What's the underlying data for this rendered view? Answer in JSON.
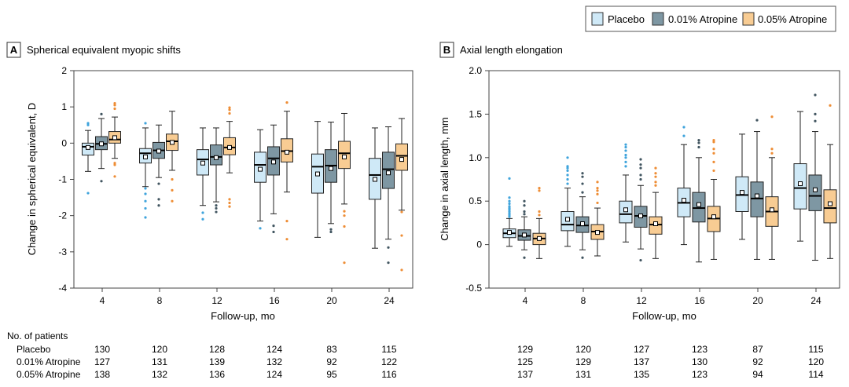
{
  "colors": {
    "placebo": "#cfe9f7",
    "atr001": "#7e97a3",
    "atr005": "#f8cc93",
    "placebo_out": "#3fa4dc",
    "atr001_out": "#415560",
    "atr005_out": "#ee8d35"
  },
  "legend": {
    "items": [
      "Placebo",
      "0.01% Atropine",
      "0.05% Atropine"
    ]
  },
  "table": {
    "header": "No. of patients",
    "rows": [
      {
        "label": "Placebo",
        "a": [
          "130",
          "120",
          "128",
          "124",
          "83",
          "115"
        ],
        "b": [
          "129",
          "120",
          "127",
          "123",
          "87",
          "115"
        ]
      },
      {
        "label": "0.01% Atropine",
        "a": [
          "127",
          "131",
          "139",
          "132",
          "92",
          "122"
        ],
        "b": [
          "125",
          "129",
          "137",
          "130",
          "92",
          "120"
        ]
      },
      {
        "label": "0.05% Atropine",
        "a": [
          "138",
          "132",
          "136",
          "124",
          "95",
          "116"
        ],
        "b": [
          "137",
          "131",
          "135",
          "123",
          "94",
          "114"
        ]
      }
    ]
  },
  "chart_data": [
    {
      "panel_letter": "A",
      "type": "box",
      "title": "Spherical equivalent myopic shifts",
      "xlabel": "Follow-up, mo",
      "ylabel": "Change in spherical equivalent, D",
      "ylim": [
        -4,
        2
      ],
      "yticks": [
        "2",
        "1",
        "0",
        "-1",
        "-2",
        "-3",
        "-4"
      ],
      "categories": [
        "4",
        "8",
        "12",
        "16",
        "20",
        "24"
      ],
      "series": [
        {
          "name": "Placebo",
          "boxes": [
            {
              "wl": -0.78,
              "q1": -0.33,
              "med": -0.1,
              "q3": 0.0,
              "wh": 0.35,
              "mean": -0.12,
              "out": [
                0.5,
                0.55,
                -1.38
              ]
            },
            {
              "wl": -1.2,
              "q1": -0.55,
              "med": -0.28,
              "q3": -0.15,
              "wh": 0.42,
              "mean": -0.38,
              "out": [
                0.55,
                -1.25,
                -1.4,
                -1.6,
                -1.8,
                -2.05
              ]
            },
            {
              "wl": -1.72,
              "q1": -0.88,
              "med": -0.45,
              "q3": -0.18,
              "wh": 0.42,
              "mean": -0.55,
              "out": [
                -1.92,
                -2.1
              ]
            },
            {
              "wl": -2.15,
              "q1": -1.08,
              "med": -0.6,
              "q3": -0.25,
              "wh": 0.37,
              "mean": -0.72,
              "out": [
                -2.35
              ]
            },
            {
              "wl": -2.6,
              "q1": -1.38,
              "med": -0.65,
              "q3": -0.3,
              "wh": 0.6,
              "mean": -0.85,
              "out": []
            },
            {
              "wl": -2.9,
              "q1": -1.55,
              "med": -0.88,
              "q3": -0.42,
              "wh": 0.42,
              "mean": -1.0,
              "out": []
            }
          ]
        },
        {
          "name": "0.01% Atropine",
          "boxes": [
            {
              "wl": -0.7,
              "q1": -0.18,
              "med": -0.02,
              "q3": 0.18,
              "wh": 0.68,
              "mean": -0.02,
              "out": [
                0.8,
                -1.05
              ]
            },
            {
              "wl": -0.95,
              "q1": -0.42,
              "med": -0.2,
              "q3": 0.02,
              "wh": 0.5,
              "mean": -0.22,
              "out": [
                -1.12,
                -1.55,
                -1.72
              ]
            },
            {
              "wl": -1.62,
              "q1": -0.6,
              "med": -0.38,
              "q3": -0.05,
              "wh": 0.42,
              "mean": -0.4,
              "out": [
                -1.72,
                -1.8,
                -1.9
              ]
            },
            {
              "wl": -1.95,
              "q1": -0.88,
              "med": -0.42,
              "q3": -0.1,
              "wh": 0.5,
              "mean": -0.52,
              "out": [
                -2.28,
                -2.45
              ]
            },
            {
              "wl": -2.22,
              "q1": -1.08,
              "med": -0.62,
              "q3": -0.18,
              "wh": 0.58,
              "mean": -0.7,
              "out": [
                -2.38,
                -2.45
              ]
            },
            {
              "wl": -2.65,
              "q1": -1.25,
              "med": -0.72,
              "q3": -0.25,
              "wh": 0.45,
              "mean": -0.82,
              "out": [
                -2.88,
                -3.3
              ]
            }
          ]
        },
        {
          "name": "0.05% Atropine",
          "boxes": [
            {
              "wl": -0.42,
              "q1": 0.0,
              "med": 0.1,
              "q3": 0.32,
              "wh": 0.72,
              "mean": 0.15,
              "out": [
                1.1,
                1.05,
                0.95,
                -0.55,
                -0.6,
                -0.92
              ]
            },
            {
              "wl": -0.75,
              "q1": -0.2,
              "med": 0.05,
              "q3": 0.25,
              "wh": 0.88,
              "mean": 0.02,
              "out": [
                -1.0,
                -1.3,
                -1.6
              ]
            },
            {
              "wl": -0.82,
              "q1": -0.32,
              "med": -0.12,
              "q3": 0.15,
              "wh": 0.6,
              "mean": -0.12,
              "out": [
                0.98,
                0.92,
                0.82,
                -1.55,
                -1.65,
                -1.75
              ]
            },
            {
              "wl": -1.35,
              "q1": -0.52,
              "med": -0.22,
              "q3": 0.12,
              "wh": 0.88,
              "mean": -0.25,
              "out": [
                1.12,
                -2.15,
                -2.65
              ]
            },
            {
              "wl": -1.68,
              "q1": -0.7,
              "med": -0.28,
              "q3": 0.05,
              "wh": 0.82,
              "mean": -0.38,
              "out": [
                -1.88,
                -2.0,
                -2.3,
                -3.3
              ]
            },
            {
              "wl": -1.85,
              "q1": -0.75,
              "med": -0.35,
              "q3": -0.02,
              "wh": 0.68,
              "mean": -0.45,
              "out": [
                -1.9,
                -2.55,
                -3.5
              ]
            }
          ]
        }
      ]
    },
    {
      "panel_letter": "B",
      "type": "box",
      "title": "Axial length elongation",
      "xlabel": "Follow-up, mo",
      "ylabel": "Change in axial length, mm",
      "ylim": [
        -0.5,
        2.0
      ],
      "yticks": [
        "2.0",
        "1.5",
        "1.0",
        "0.5",
        "0",
        "-0.5"
      ],
      "categories": [
        "4",
        "8",
        "12",
        "16",
        "20",
        "24"
      ],
      "series": [
        {
          "name": "Placebo",
          "boxes": [
            {
              "wl": -0.02,
              "q1": 0.08,
              "med": 0.13,
              "q3": 0.18,
              "wh": 0.3,
              "mean": 0.14,
              "out": [
                0.32,
                0.34,
                0.36,
                0.38,
                0.4,
                0.42,
                0.44,
                0.47,
                0.5,
                0.54,
                0.76
              ]
            },
            {
              "wl": -0.02,
              "q1": 0.16,
              "med": 0.23,
              "q3": 0.38,
              "wh": 0.65,
              "mean": 0.29,
              "out": [
                0.7,
                0.75,
                0.8,
                0.85,
                0.88,
                0.9,
                1.0
              ]
            },
            {
              "wl": 0.03,
              "q1": 0.25,
              "med": 0.35,
              "q3": 0.5,
              "wh": 0.8,
              "mean": 0.4,
              "out": [
                0.9,
                0.95,
                1.0,
                1.03,
                1.08,
                1.12,
                1.15
              ]
            },
            {
              "wl": 0.0,
              "q1": 0.32,
              "med": 0.48,
              "q3": 0.65,
              "wh": 1.15,
              "mean": 0.51,
              "out": [
                1.25,
                1.35
              ]
            },
            {
              "wl": 0.06,
              "q1": 0.38,
              "med": 0.57,
              "q3": 0.78,
              "wh": 1.27,
              "mean": 0.6,
              "out": []
            },
            {
              "wl": 0.04,
              "q1": 0.41,
              "med": 0.65,
              "q3": 0.93,
              "wh": 1.53,
              "mean": 0.7,
              "out": []
            }
          ]
        },
        {
          "name": "0.01% Atropine",
          "boxes": [
            {
              "wl": -0.06,
              "q1": 0.05,
              "med": 0.1,
              "q3": 0.17,
              "wh": 0.32,
              "mean": 0.11,
              "out": [
                0.35,
                0.38,
                0.45,
                0.5,
                -0.15
              ]
            },
            {
              "wl": -0.06,
              "q1": 0.14,
              "med": 0.22,
              "q3": 0.32,
              "wh": 0.55,
              "mean": 0.24,
              "out": [
                0.6,
                0.7,
                0.78,
                0.82,
                -0.15
              ]
            },
            {
              "wl": -0.05,
              "q1": 0.2,
              "med": 0.33,
              "q3": 0.44,
              "wh": 0.68,
              "mean": 0.33,
              "out": [
                0.75,
                0.8,
                0.88,
                0.92,
                0.98,
                -0.18
              ]
            },
            {
              "wl": -0.2,
              "q1": 0.26,
              "med": 0.42,
              "q3": 0.6,
              "wh": 1.0,
              "mean": 0.46,
              "out": [
                1.12,
                1.17,
                1.2
              ]
            },
            {
              "wl": -0.17,
              "q1": 0.32,
              "med": 0.53,
              "q3": 0.72,
              "wh": 1.3,
              "mean": 0.56,
              "out": [
                1.43
              ]
            },
            {
              "wl": -0.18,
              "q1": 0.39,
              "med": 0.56,
              "q3": 0.8,
              "wh": 1.3,
              "mean": 0.63,
              "out": [
                1.42,
                1.5,
                1.72
              ]
            }
          ]
        },
        {
          "name": "0.05% Atropine",
          "boxes": [
            {
              "wl": -0.16,
              "q1": 0.0,
              "med": 0.07,
              "q3": 0.13,
              "wh": 0.3,
              "mean": 0.07,
              "out": [
                0.34,
                0.38,
                0.62,
                0.65
              ]
            },
            {
              "wl": -0.13,
              "q1": 0.06,
              "med": 0.15,
              "q3": 0.23,
              "wh": 0.42,
              "mean": 0.14,
              "out": [
                0.48,
                0.58,
                0.62,
                0.65,
                0.72
              ]
            },
            {
              "wl": -0.16,
              "q1": 0.12,
              "med": 0.23,
              "q3": 0.32,
              "wh": 0.6,
              "mean": 0.24,
              "out": [
                0.68,
                0.72,
                0.78,
                0.82,
                0.88
              ]
            },
            {
              "wl": -0.17,
              "q1": 0.15,
              "med": 0.3,
              "q3": 0.44,
              "wh": 0.75,
              "mean": 0.32,
              "out": [
                0.85,
                0.95,
                1.05,
                1.1,
                1.18,
                1.2
              ]
            },
            {
              "wl": -0.17,
              "q1": 0.21,
              "med": 0.38,
              "q3": 0.55,
              "wh": 1.0,
              "mean": 0.4,
              "out": [
                1.05,
                1.1,
                1.47
              ]
            },
            {
              "wl": -0.16,
              "q1": 0.25,
              "med": 0.42,
              "q3": 0.63,
              "wh": 1.15,
              "mean": 0.47,
              "out": [
                1.6
              ]
            }
          ]
        }
      ]
    }
  ]
}
